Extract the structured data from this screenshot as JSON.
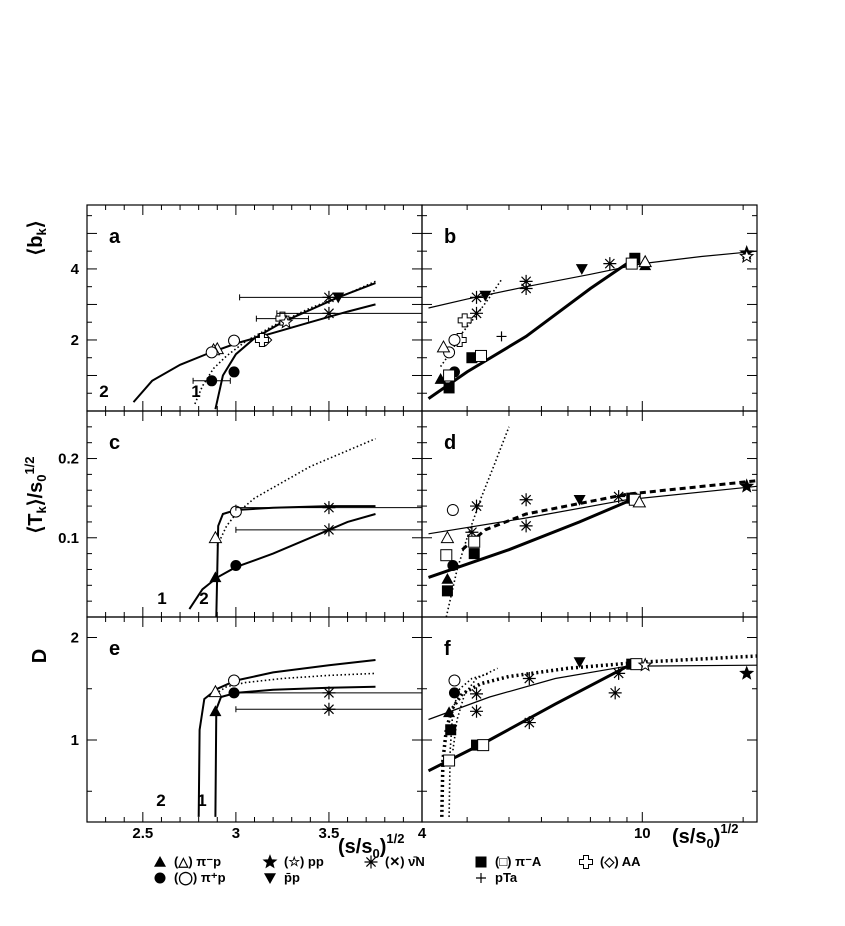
{
  "figure": {
    "x_left_label": "(s/s0)1/2",
    "x_right_label": "(s/s0)1/2",
    "x_right_tick": "10"
  },
  "chart_data": [
    {
      "type": "scatter",
      "panel": "a",
      "label": "a",
      "ylabel": "⟨bk⟩",
      "xlim": [
        2.2,
        4.0
      ],
      "ylim": [
        0,
        5.8
      ],
      "xticks": [
        "2.5",
        "3",
        "3.5",
        "4"
      ],
      "yticks": [
        "2",
        "4"
      ],
      "curve_labels": [
        "2",
        "1"
      ],
      "curves": [
        {
          "style": "solid",
          "label": "2",
          "x": [
            2.45,
            2.55,
            2.7,
            2.85,
            3.0,
            3.2,
            3.4,
            3.6,
            3.75
          ],
          "y": [
            0.25,
            0.85,
            1.3,
            1.62,
            1.9,
            2.2,
            2.5,
            2.8,
            3.0
          ]
        },
        {
          "style": "solid",
          "label": "1",
          "x": [
            2.89,
            2.93,
            3.0,
            3.1,
            3.25,
            3.4,
            3.55,
            3.75
          ],
          "y": [
            0.05,
            1.0,
            1.6,
            2.05,
            2.5,
            2.85,
            3.2,
            3.6
          ]
        },
        {
          "style": "dotted",
          "x": [
            2.78,
            2.82,
            2.88,
            2.95,
            3.05,
            3.2,
            3.4,
            3.6,
            3.75
          ],
          "y": [
            0.2,
            0.7,
            1.2,
            1.55,
            1.95,
            2.4,
            2.9,
            3.3,
            3.65
          ]
        }
      ],
      "points": [
        {
          "marker": "tri-open",
          "x": 2.9,
          "y": 1.75
        },
        {
          "marker": "tri-open",
          "x": 2.88,
          "y": 1.72
        },
        {
          "marker": "circ-open",
          "x": 2.87,
          "y": 1.65
        },
        {
          "marker": "circ-open",
          "x": 2.99,
          "y": 1.98
        },
        {
          "marker": "circ-fill",
          "x": 2.87,
          "y": 0.85,
          "xerr": 0.1
        },
        {
          "marker": "circ-fill",
          "x": 2.99,
          "y": 1.1
        },
        {
          "marker": "cross-open",
          "x": 3.25,
          "y": 2.6,
          "xerr": 0.14
        },
        {
          "marker": "diamond-open",
          "x": 3.16,
          "y": 2.0
        },
        {
          "marker": "cross-open",
          "x": 3.14,
          "y": 2.0
        },
        {
          "marker": "snow",
          "x": 3.5,
          "y": 2.75,
          "xerr_lo": 0.28,
          "xerr_hi": 0.5
        },
        {
          "marker": "snow",
          "x": 3.5,
          "y": 3.2,
          "xerr_lo": 0.48,
          "xerr_hi": 0.5
        },
        {
          "marker": "tri-down-fill",
          "x": 3.55,
          "y": 3.2
        },
        {
          "marker": "star-open",
          "x": 3.27,
          "y": 2.5
        }
      ]
    },
    {
      "type": "scatter",
      "panel": "b",
      "label": "b",
      "ylabel": "⟨bk⟩",
      "xscale": "log",
      "xlim": [
        2.2,
        22.0
      ],
      "ylim": [
        0,
        5.8
      ],
      "xticks": [
        "10"
      ],
      "yticks": [
        "2",
        "4"
      ],
      "curves": [
        {
          "style": "thin",
          "x": [
            2.3,
            3.0,
            4.5,
            7.0,
            10.0,
            15.0,
            22.0
          ],
          "y": [
            2.9,
            3.15,
            3.5,
            3.85,
            4.15,
            4.35,
            4.5
          ]
        },
        {
          "style": "thick",
          "x": [
            2.3,
            3.0,
            4.5,
            7.0,
            9.5
          ],
          "y": [
            0.35,
            1.1,
            2.1,
            3.45,
            4.3
          ]
        },
        {
          "style": "dotted",
          "x": [
            2.5,
            2.7,
            2.9,
            3.2,
            3.5,
            3.8
          ],
          "y": [
            1.25,
            1.7,
            2.2,
            2.7,
            3.2,
            3.7
          ]
        }
      ],
      "points": [
        {
          "marker": "square-fill",
          "x": 9.5,
          "y": 4.3
        },
        {
          "marker": "square-open",
          "x": 9.3,
          "y": 4.15
        },
        {
          "marker": "tri-up-fill",
          "x": 10.2,
          "y": 4.1
        },
        {
          "marker": "tri-open",
          "x": 10.2,
          "y": 4.2
        },
        {
          "marker": "star-fill",
          "x": 20.5,
          "y": 4.45
        },
        {
          "marker": "star-open",
          "x": 20.5,
          "y": 4.35
        },
        {
          "marker": "snow",
          "x": 8.0,
          "y": 4.15
        },
        {
          "marker": "snow",
          "x": 4.5,
          "y": 3.65
        },
        {
          "marker": "snow",
          "x": 4.5,
          "y": 3.45
        },
        {
          "marker": "snow",
          "x": 3.2,
          "y": 3.2
        },
        {
          "marker": "snow",
          "x": 3.2,
          "y": 2.75
        },
        {
          "marker": "tri-down-fill",
          "x": 3.4,
          "y": 3.25
        },
        {
          "marker": "tri-down-fill",
          "x": 6.6,
          "y": 4.0
        },
        {
          "marker": "cross-open",
          "x": 2.95,
          "y": 2.55
        },
        {
          "marker": "cross-open",
          "x": 2.85,
          "y": 2.0
        },
        {
          "marker": "circ-open",
          "x": 2.75,
          "y": 2.0
        },
        {
          "marker": "circ-open",
          "x": 2.65,
          "y": 1.65
        },
        {
          "marker": "tri-open",
          "x": 2.55,
          "y": 1.8
        },
        {
          "marker": "circ-fill",
          "x": 2.75,
          "y": 1.1
        },
        {
          "marker": "square-fill",
          "x": 3.1,
          "y": 1.5
        },
        {
          "marker": "square-open",
          "x": 3.3,
          "y": 1.55
        },
        {
          "marker": "plus",
          "x": 3.8,
          "y": 2.1
        },
        {
          "marker": "square-fill",
          "x": 2.65,
          "y": 0.65
        },
        {
          "marker": "tri-up-fill",
          "x": 2.5,
          "y": 0.9
        },
        {
          "marker": "square-open",
          "x": 2.65,
          "y": 1.0
        }
      ]
    },
    {
      "type": "scatter",
      "panel": "c",
      "label": "c",
      "ylabel": "⟨Tk⟩/s0 1/2",
      "xlim": [
        2.2,
        4.0
      ],
      "ylim": [
        0,
        0.26
      ],
      "xticks": [
        "2.5",
        "3",
        "3.5",
        "4"
      ],
      "yticks": [
        "0.1",
        "0.2"
      ],
      "curve_labels": [
        "1",
        "2"
      ],
      "curves": [
        {
          "style": "solid",
          "label": "1",
          "x": [
            2.75,
            2.82,
            2.9,
            3.0,
            3.2,
            3.4,
            3.6,
            3.75
          ],
          "y": [
            0.01,
            0.035,
            0.05,
            0.063,
            0.08,
            0.1,
            0.12,
            0.13
          ]
        },
        {
          "style": "solid",
          "label": "2",
          "x": [
            2.895,
            2.9,
            2.905,
            2.93,
            3.0,
            3.2,
            3.5,
            3.75
          ],
          "y": [
            0.0,
            0.06,
            0.115,
            0.13,
            0.135,
            0.138,
            0.14,
            0.14
          ]
        },
        {
          "style": "dotted",
          "x": [
            2.9,
            2.95,
            3.0,
            3.1,
            3.25,
            3.4,
            3.6,
            3.75
          ],
          "y": [
            0.09,
            0.115,
            0.13,
            0.15,
            0.17,
            0.19,
            0.21,
            0.225
          ]
        }
      ],
      "points": [
        {
          "marker": "circ-open",
          "x": 3.0,
          "y": 0.133
        },
        {
          "marker": "tri-open",
          "x": 2.89,
          "y": 0.1
        },
        {
          "marker": "circ-fill",
          "x": 3.0,
          "y": 0.065
        },
        {
          "marker": "tri-up-fill",
          "x": 2.89,
          "y": 0.05
        },
        {
          "marker": "snow",
          "x": 3.5,
          "y": 0.138,
          "xerr_lo": 0.5,
          "xerr_hi": 0.5
        },
        {
          "marker": "snow",
          "x": 3.5,
          "y": 0.11,
          "xerr_lo": 0.5,
          "xerr_hi": 0.5
        }
      ]
    },
    {
      "type": "scatter",
      "panel": "d",
      "label": "d",
      "ylabel": "⟨Tk⟩/s0 1/2",
      "xscale": "log",
      "xlim": [
        2.2,
        22.0
      ],
      "ylim": [
        0,
        0.26
      ],
      "xticks": [
        "10"
      ],
      "yticks": [
        "0.1",
        "0.2"
      ],
      "curves": [
        {
          "style": "thin",
          "x": [
            2.3,
            4.5,
            9.0,
            22.0
          ],
          "y": [
            0.105,
            0.125,
            0.148,
            0.165
          ]
        },
        {
          "style": "thick",
          "x": [
            2.3,
            4.0,
            6.5,
            9.3
          ],
          "y": [
            0.05,
            0.085,
            0.12,
            0.148
          ]
        },
        {
          "style": "dotted",
          "x": [
            2.6,
            2.8,
            3.0,
            3.3,
            3.6,
            4.0
          ],
          "y": [
            0.0,
            0.06,
            0.1,
            0.15,
            0.19,
            0.24
          ]
        },
        {
          "style": "dashed",
          "x": [
            2.9,
            3.4,
            4.5,
            9.0,
            22.0
          ],
          "y": [
            0.085,
            0.11,
            0.13,
            0.155,
            0.172
          ]
        }
      ],
      "points": [
        {
          "marker": "square-fill",
          "x": 9.3,
          "y": 0.15
        },
        {
          "marker": "square-open",
          "x": 9.5,
          "y": 0.148
        },
        {
          "marker": "tri-open",
          "x": 9.8,
          "y": 0.145
        },
        {
          "marker": "star-fill",
          "x": 20.5,
          "y": 0.165
        },
        {
          "marker": "snow",
          "x": 8.5,
          "y": 0.152
        },
        {
          "marker": "tri-down-fill",
          "x": 6.5,
          "y": 0.148
        },
        {
          "marker": "snow",
          "x": 4.5,
          "y": 0.148
        },
        {
          "marker": "snow",
          "x": 3.2,
          "y": 0.14
        },
        {
          "marker": "snow",
          "x": 4.5,
          "y": 0.115
        },
        {
          "marker": "snow",
          "x": 3.1,
          "y": 0.107
        },
        {
          "marker": "circ-open",
          "x": 2.72,
          "y": 0.135
        },
        {
          "marker": "tri-open",
          "x": 2.62,
          "y": 0.1
        },
        {
          "marker": "square-open",
          "x": 3.15,
          "y": 0.095
        },
        {
          "marker": "square-fill",
          "x": 3.15,
          "y": 0.08
        },
        {
          "marker": "square-open",
          "x": 2.6,
          "y": 0.078
        },
        {
          "marker": "circ-fill",
          "x": 2.72,
          "y": 0.065
        },
        {
          "marker": "tri-up-fill",
          "x": 2.62,
          "y": 0.048
        },
        {
          "marker": "square-fill",
          "x": 2.62,
          "y": 0.033
        }
      ]
    },
    {
      "type": "scatter",
      "panel": "e",
      "label": "e",
      "ylabel": "D",
      "xlim": [
        2.2,
        4.0
      ],
      "ylim": [
        0.2,
        2.2
      ],
      "xticks": [
        "2.5",
        "3",
        "3.5",
        "4"
      ],
      "yticks": [
        "1",
        "2"
      ],
      "curve_labels": [
        "2",
        "1"
      ],
      "curves": [
        {
          "style": "solid",
          "label": "2",
          "x": [
            2.8,
            2.805,
            2.83,
            2.9,
            3.0,
            3.2,
            3.5,
            3.75
          ],
          "y": [
            0.25,
            1.1,
            1.4,
            1.5,
            1.58,
            1.66,
            1.73,
            1.78
          ]
        },
        {
          "style": "solid",
          "label": "1",
          "x": [
            2.89,
            2.895,
            2.92,
            3.0,
            3.2,
            3.5,
            3.75
          ],
          "y": [
            0.25,
            1.3,
            1.42,
            1.46,
            1.49,
            1.51,
            1.52
          ]
        },
        {
          "style": "dotted",
          "x": [
            2.89,
            2.95,
            3.05,
            3.25,
            3.5,
            3.75
          ],
          "y": [
            1.45,
            1.52,
            1.56,
            1.6,
            1.63,
            1.65
          ]
        }
      ],
      "points": [
        {
          "marker": "circ-open",
          "x": 2.99,
          "y": 1.58
        },
        {
          "marker": "tri-open",
          "x": 2.89,
          "y": 1.47
        },
        {
          "marker": "circ-fill",
          "x": 2.99,
          "y": 1.46
        },
        {
          "marker": "tri-up-fill",
          "x": 2.89,
          "y": 1.28
        },
        {
          "marker": "snow",
          "x": 3.5,
          "y": 1.46,
          "xerr_lo": 0.5,
          "xerr_hi": 0.5
        },
        {
          "marker": "snow",
          "x": 3.5,
          "y": 1.3,
          "xerr_lo": 0.5,
          "xerr_hi": 0.5
        }
      ]
    },
    {
      "type": "scatter",
      "panel": "f",
      "label": "f",
      "ylabel": "D",
      "xscale": "log",
      "xlim": [
        2.2,
        22.0
      ],
      "ylim": [
        0.2,
        2.2
      ],
      "xticks": [
        "10"
      ],
      "yticks": [
        "1",
        "2"
      ],
      "curves": [
        {
          "style": "thin",
          "x": [
            2.3,
            3.5,
            5.5,
            9.0,
            22.0
          ],
          "y": [
            1.2,
            1.42,
            1.6,
            1.72,
            1.73
          ]
        },
        {
          "style": "thick",
          "x": [
            2.3,
            3.5,
            5.5,
            9.3
          ],
          "y": [
            0.7,
            1.0,
            1.35,
            1.74
          ]
        },
        {
          "style": "dotted-thick",
          "x": [
            2.52,
            2.54,
            2.6,
            2.7,
            2.9,
            3.3,
            4.0,
            6.0,
            10.0,
            22.0
          ],
          "y": [
            0.25,
            0.8,
            1.1,
            1.3,
            1.45,
            1.55,
            1.62,
            1.7,
            1.76,
            1.82
          ]
        },
        {
          "style": "dotted",
          "x": [
            2.65,
            2.67,
            2.72,
            2.85,
            3.1,
            3.5
          ],
          "y": [
            0.25,
            0.9,
            1.3,
            1.5,
            1.6,
            1.65
          ]
        },
        {
          "style": "dotted",
          "x": [
            2.72,
            2.8,
            2.95,
            3.2,
            3.7
          ],
          "y": [
            0.9,
            1.2,
            1.45,
            1.6,
            1.7
          ]
        }
      ],
      "points": [
        {
          "marker": "square-fill",
          "x": 9.3,
          "y": 1.74
        },
        {
          "marker": "square-open",
          "x": 9.6,
          "y": 1.74
        },
        {
          "marker": "star-open",
          "x": 10.2,
          "y": 1.73
        },
        {
          "marker": "star-fill",
          "x": 20.5,
          "y": 1.65
        },
        {
          "marker": "tri-down-fill",
          "x": 6.5,
          "y": 1.76
        },
        {
          "marker": "snow",
          "x": 8.5,
          "y": 1.65
        },
        {
          "marker": "snow",
          "x": 8.3,
          "y": 1.46
        },
        {
          "marker": "snow",
          "x": 4.6,
          "y": 1.6
        },
        {
          "marker": "snow",
          "x": 4.6,
          "y": 1.17
        },
        {
          "marker": "snow",
          "x": 3.2,
          "y": 1.28
        },
        {
          "marker": "snow",
          "x": 3.2,
          "y": 1.45
        },
        {
          "marker": "circ-open",
          "x": 2.75,
          "y": 1.58
        },
        {
          "marker": "circ-fill",
          "x": 2.75,
          "y": 1.46
        },
        {
          "marker": "tri-up-fill",
          "x": 2.65,
          "y": 1.27
        },
        {
          "marker": "square-fill",
          "x": 2.68,
          "y": 1.1
        },
        {
          "marker": "square-fill",
          "x": 3.2,
          "y": 0.95
        },
        {
          "marker": "square-open",
          "x": 3.35,
          "y": 0.95
        },
        {
          "marker": "square-open",
          "x": 2.65,
          "y": 0.8
        }
      ]
    }
  ],
  "legend": {
    "items": [
      {
        "marker": "tri-up-fill",
        "alt": "(△)",
        "text": "π⁻p"
      },
      {
        "marker": "star-fill",
        "alt": "(☆)",
        "text": "pp"
      },
      {
        "marker": "snow",
        "alt": "(✕)",
        "text": "ν̄N"
      },
      {
        "marker": "square-fill",
        "alt": "(□)",
        "text": "π⁻A"
      },
      {
        "marker": "cross-open",
        "alt": "(◇)",
        "text": "AA"
      },
      {
        "marker": "circ-fill",
        "alt": "(◯)",
        "text": "π⁺p"
      },
      {
        "marker": "tri-down-fill",
        "alt": "",
        "text": "p̄p"
      },
      {
        "marker": "plus",
        "alt": "",
        "text": "pTa"
      }
    ]
  }
}
